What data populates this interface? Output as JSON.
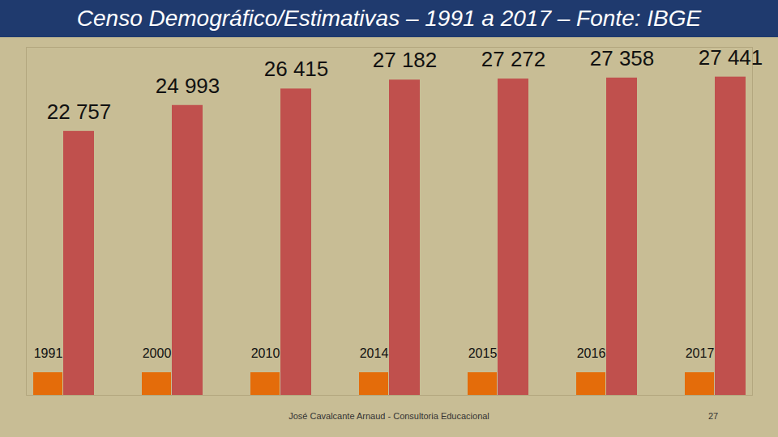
{
  "chart_data": {
    "type": "bar",
    "title": "Censo Demográfico/Estimativas – 1991 a 2017 – Fonte: IBGE",
    "categories": [
      "1991",
      "2000",
      "2010",
      "2014",
      "2015",
      "2016",
      "2017"
    ],
    "values": [
      22757,
      24993,
      26415,
      27182,
      27272,
      27358,
      27441
    ],
    "value_labels": [
      "22 757",
      "24 993",
      "26 415",
      "27 182",
      "27 272",
      "27 358",
      "27 441"
    ],
    "data_labels": true,
    "color": "#c0504d",
    "ylim": [
      0,
      30000
    ],
    "tick_labels": false,
    "grid": false,
    "footer": "José Cavalcante Arnaud - Consultoria Educacional",
    "page_number": "27"
  }
}
